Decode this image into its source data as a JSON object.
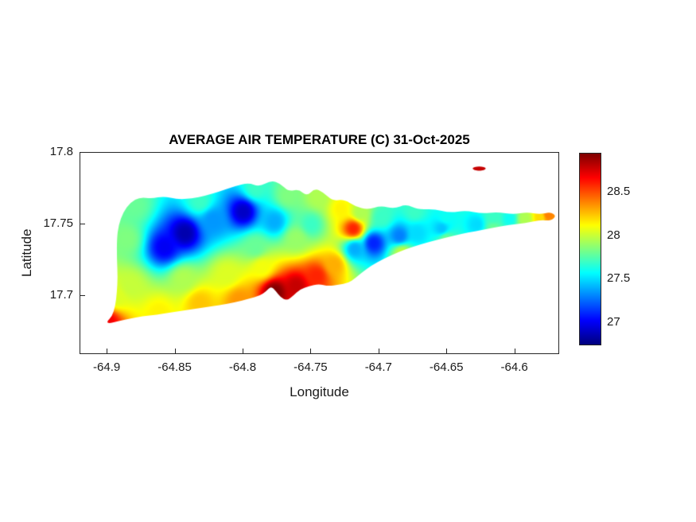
{
  "chart_data": {
    "type": "heatmap",
    "title": "AVERAGE AIR TEMPERATURE (C) 31-Oct-2025",
    "xlabel": "Longitude",
    "ylabel": "Latitude",
    "grid": false,
    "x_axis": {
      "lim": [
        -64.92,
        -64.567
      ],
      "ticks": [
        {
          "value": -64.9,
          "label": "-64.9"
        },
        {
          "value": -64.85,
          "label": "-64.85"
        },
        {
          "value": -64.8,
          "label": "-64.8"
        },
        {
          "value": -64.75,
          "label": "-64.75"
        },
        {
          "value": -64.7,
          "label": "-64.7"
        },
        {
          "value": -64.65,
          "label": "-64.65"
        },
        {
          "value": -64.6,
          "label": "-64.6"
        }
      ]
    },
    "y_axis": {
      "lim": [
        17.659,
        17.8
      ],
      "ticks": [
        {
          "value": 17.7,
          "label": "17.7"
        },
        {
          "value": 17.75,
          "label": "17.75"
        },
        {
          "value": 17.8,
          "label": "17.8"
        }
      ]
    },
    "colorbar": {
      "colormap": "jet",
      "orientation": "vertical",
      "lim": [
        26.75,
        28.95
      ],
      "ticks": [
        {
          "value": 27,
          "label": "27"
        },
        {
          "value": 27.5,
          "label": "27.5"
        },
        {
          "value": 28,
          "label": "28"
        },
        {
          "value": 28.5,
          "label": "28.5"
        }
      ]
    },
    "interpolation": "idw-power-3",
    "island_outline": [
      [
        -64.8931,
        17.7399
      ],
      [
        -64.8919,
        17.7493
      ],
      [
        -64.8884,
        17.7587
      ],
      [
        -64.8832,
        17.7653
      ],
      [
        -64.8761,
        17.7691
      ],
      [
        -64.8674,
        17.768
      ],
      [
        -64.8586,
        17.7697
      ],
      [
        -64.8487,
        17.7675
      ],
      [
        -64.8381,
        17.768
      ],
      [
        -64.8276,
        17.7702
      ],
      [
        -64.8177,
        17.773
      ],
      [
        -64.806,
        17.7769
      ],
      [
        -64.796,
        17.7791
      ],
      [
        -64.7884,
        17.7763
      ],
      [
        -64.7796,
        17.7807
      ],
      [
        -64.7726,
        17.7785
      ],
      [
        -64.7668,
        17.773
      ],
      [
        -64.7592,
        17.7746
      ],
      [
        -64.7533,
        17.7697
      ],
      [
        -64.7475,
        17.7752
      ],
      [
        -64.741,
        17.7724
      ],
      [
        -64.7346,
        17.7664
      ],
      [
        -64.7258,
        17.7675
      ],
      [
        -64.7177,
        17.7625
      ],
      [
        -64.7083,
        17.7603
      ],
      [
        -64.6989,
        17.7631
      ],
      [
        -64.689,
        17.7609
      ],
      [
        -64.6802,
        17.7642
      ],
      [
        -64.6715,
        17.7603
      ],
      [
        -64.6598,
        17.7609
      ],
      [
        -64.6481,
        17.7581
      ],
      [
        -64.6364,
        17.7598
      ],
      [
        -64.6247,
        17.7576
      ],
      [
        -64.613,
        17.7587
      ],
      [
        -64.6013,
        17.757
      ],
      [
        -64.5913,
        17.7587
      ],
      [
        -64.582,
        17.757
      ],
      [
        -64.5738,
        17.7587
      ],
      [
        -64.5697,
        17.7559
      ],
      [
        -64.5738,
        17.7526
      ],
      [
        -64.582,
        17.7531
      ],
      [
        -64.5925,
        17.7509
      ],
      [
        -64.6042,
        17.7498
      ],
      [
        -64.6171,
        17.7476
      ],
      [
        -64.6288,
        17.7454
      ],
      [
        -64.6405,
        17.7432
      ],
      [
        -64.6522,
        17.7405
      ],
      [
        -64.6639,
        17.7377
      ],
      [
        -64.6756,
        17.7344
      ],
      [
        -64.6861,
        17.7306
      ],
      [
        -64.6966,
        17.7261
      ],
      [
        -64.706,
        17.7212
      ],
      [
        -64.7124,
        17.7168
      ],
      [
        -64.7177,
        17.7124
      ],
      [
        -64.7229,
        17.7091
      ],
      [
        -64.7299,
        17.708
      ],
      [
        -64.7375,
        17.7069
      ],
      [
        -64.7446,
        17.7085
      ],
      [
        -64.7516,
        17.7069
      ],
      [
        -64.7586,
        17.7047
      ],
      [
        -64.7633,
        17.7003
      ],
      [
        -64.768,
        17.6969
      ],
      [
        -64.7726,
        17.6991
      ],
      [
        -64.7761,
        17.7035
      ],
      [
        -64.7796,
        17.7069
      ],
      [
        -64.7831,
        17.7035
      ],
      [
        -64.7878,
        17.7003
      ],
      [
        -64.796,
        17.6981
      ],
      [
        -64.806,
        17.6958
      ],
      [
        -64.8177,
        17.6936
      ],
      [
        -64.8294,
        17.692
      ],
      [
        -64.8411,
        17.6903
      ],
      [
        -64.8528,
        17.6887
      ],
      [
        -64.8639,
        17.687
      ],
      [
        -64.8744,
        17.6859
      ],
      [
        -64.8837,
        17.6842
      ],
      [
        -64.8919,
        17.6826
      ],
      [
        -64.8989,
        17.6809
      ],
      [
        -64.9007,
        17.682
      ],
      [
        -64.8966,
        17.6859
      ],
      [
        -64.8943,
        17.6931
      ],
      [
        -64.8931,
        17.7024
      ],
      [
        -64.8925,
        17.7135
      ],
      [
        -64.8931,
        17.7261
      ]
    ],
    "islet_outline": [
      [
        -64.6317,
        17.789
      ],
      [
        -64.63,
        17.7901
      ],
      [
        -64.6264,
        17.7906
      ],
      [
        -64.6229,
        17.7901
      ],
      [
        -64.6212,
        17.789
      ],
      [
        -64.6229,
        17.7879
      ],
      [
        -64.6264,
        17.7873
      ],
      [
        -64.63,
        17.7879
      ]
    ],
    "temperature_points": [
      {
        "lon": -64.843,
        "lat": 17.744,
        "value": 26.85
      },
      {
        "lon": -64.858,
        "lat": 17.734,
        "value": 27.0
      },
      {
        "lon": -64.8,
        "lat": 17.759,
        "value": 26.9
      },
      {
        "lon": -64.822,
        "lat": 17.753,
        "value": 27.35
      },
      {
        "lon": -64.704,
        "lat": 17.737,
        "value": 27.1
      },
      {
        "lon": -64.685,
        "lat": 17.742,
        "value": 27.3
      },
      {
        "lon": -64.718,
        "lat": 17.733,
        "value": 27.4
      },
      {
        "lon": -64.654,
        "lat": 17.747,
        "value": 27.45
      },
      {
        "lon": -64.628,
        "lat": 17.75,
        "value": 27.5
      },
      {
        "lon": -64.604,
        "lat": 17.754,
        "value": 27.6
      },
      {
        "lon": -64.886,
        "lat": 17.74,
        "value": 27.85
      },
      {
        "lon": -64.791,
        "lat": 17.734,
        "value": 27.8
      },
      {
        "lon": -64.761,
        "lat": 17.74,
        "value": 27.9
      },
      {
        "lon": -64.777,
        "lat": 17.703,
        "value": 28.95
      },
      {
        "lon": -64.761,
        "lat": 17.707,
        "value": 28.8
      },
      {
        "lon": -64.746,
        "lat": 17.714,
        "value": 28.6
      },
      {
        "lon": -64.733,
        "lat": 17.722,
        "value": 28.3
      },
      {
        "lon": -64.719,
        "lat": 17.747,
        "value": 28.6
      },
      {
        "lon": -64.9,
        "lat": 17.682,
        "value": 28.7
      },
      {
        "lon": -64.576,
        "lat": 17.7565,
        "value": 28.4
      },
      {
        "lon": -64.626,
        "lat": 17.789,
        "value": 28.8
      },
      {
        "lon": -64.832,
        "lat": 17.695,
        "value": 28.25
      },
      {
        "lon": -64.803,
        "lat": 17.697,
        "value": 28.35
      },
      {
        "lon": -64.862,
        "lat": 17.688,
        "value": 28.15
      },
      {
        "lon": -64.883,
        "lat": 17.707,
        "value": 28.0
      },
      {
        "lon": -64.844,
        "lat": 17.712,
        "value": 27.95
      },
      {
        "lon": -64.812,
        "lat": 17.715,
        "value": 28.05
      },
      {
        "lon": -64.786,
        "lat": 17.72,
        "value": 28.1
      },
      {
        "lon": -64.832,
        "lat": 17.766,
        "value": 27.7
      },
      {
        "lon": -64.791,
        "lat": 17.775,
        "value": 27.7
      },
      {
        "lon": -64.767,
        "lat": 17.77,
        "value": 27.85
      },
      {
        "lon": -64.745,
        "lat": 17.769,
        "value": 27.95
      },
      {
        "lon": -64.728,
        "lat": 17.761,
        "value": 28.15
      },
      {
        "lon": -64.674,
        "lat": 17.759,
        "value": 27.7
      },
      {
        "lon": -64.651,
        "lat": 17.755,
        "value": 27.6
      },
      {
        "lon": -64.616,
        "lat": 17.755,
        "value": 27.7
      },
      {
        "lon": -64.593,
        "lat": 17.754,
        "value": 27.95
      },
      {
        "lon": -64.581,
        "lat": 17.755,
        "value": 28.2
      },
      {
        "lon": -64.88,
        "lat": 17.763,
        "value": 27.8
      },
      {
        "lon": -64.893,
        "lat": 17.699,
        "value": 28.05
      },
      {
        "lon": -64.672,
        "lat": 17.744,
        "value": 27.5
      },
      {
        "lon": -64.698,
        "lat": 17.755,
        "value": 27.7
      },
      {
        "lon": -64.714,
        "lat": 17.758,
        "value": 27.95
      },
      {
        "lon": -64.683,
        "lat": 17.73,
        "value": 28.0
      },
      {
        "lon": -64.651,
        "lat": 17.74,
        "value": 27.8
      },
      {
        "lon": -64.616,
        "lat": 17.747,
        "value": 27.8
      },
      {
        "lon": -64.777,
        "lat": 17.752,
        "value": 27.4
      },
      {
        "lon": -64.75,
        "lat": 17.75,
        "value": 27.7
      }
    ]
  }
}
